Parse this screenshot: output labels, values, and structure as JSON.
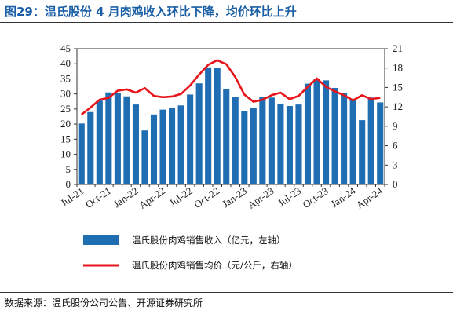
{
  "title": "图29：温氏股份 4 月肉鸡收入环比下降，均价环比上升",
  "source": "数据来源：温氏股份公司公告、开源证券研究所",
  "colors": {
    "title": "#1a5fa6",
    "bar": "#1f6db3",
    "line": "#e8141b"
  },
  "chart_data": {
    "type": "bar",
    "categories": [
      "Jul-21",
      "Aug-21",
      "Sep-21",
      "Oct-21",
      "Nov-21",
      "Dec-21",
      "Jan-22",
      "Feb-22",
      "Mar-22",
      "Apr-22",
      "May-22",
      "Jun-22",
      "Jul-22",
      "Aug-22",
      "Sep-22",
      "Oct-22",
      "Nov-22",
      "Dec-22",
      "Jan-23",
      "Feb-23",
      "Mar-23",
      "Apr-23",
      "May-23",
      "Jun-23",
      "Jul-23",
      "Aug-23",
      "Sep-23",
      "Oct-23",
      "Nov-23",
      "Dec-23",
      "Jan-24",
      "Feb-24",
      "Mar-24",
      "Apr-24"
    ],
    "x_tick_labels": [
      "Jul-21",
      "Oct-21",
      "Jan-22",
      "Apr-22",
      "Jul-22",
      "Oct-22",
      "Jan-23",
      "Apr-23",
      "Jul-23",
      "Oct-23",
      "Jan-24",
      "Apr-24"
    ],
    "series": [
      {
        "name": "温氏股份肉鸡销售收入（亿元，左轴）",
        "kind": "bar",
        "axis": "left",
        "values": [
          20.2,
          24.0,
          27.8,
          30.5,
          30.2,
          29.2,
          26.5,
          17.9,
          23.2,
          24.8,
          25.5,
          26.2,
          29.8,
          33.5,
          38.8,
          38.7,
          31.6,
          29.0,
          24.2,
          25.4,
          28.9,
          28.8,
          26.8,
          26.0,
          26.5,
          33.4,
          34.9,
          34.5,
          32.0,
          30.4,
          28.4,
          21.3,
          28.8,
          27.2
        ]
      },
      {
        "name": "温氏股份肉鸡销售均价（元/公斤，右轴）",
        "kind": "line",
        "axis": "right",
        "values": [
          10.8,
          11.9,
          13.1,
          13.4,
          14.5,
          14.7,
          14.2,
          14.9,
          13.7,
          13.5,
          13.6,
          14.0,
          15.3,
          17.0,
          18.5,
          19.2,
          18.6,
          16.6,
          13.9,
          12.8,
          13.1,
          13.8,
          14.2,
          13.2,
          13.7,
          15.1,
          16.4,
          15.1,
          14.4,
          13.8,
          13.0,
          13.8,
          13.2,
          13.4
        ]
      }
    ],
    "y_left": {
      "ylim": [
        0,
        45
      ],
      "ticks": [
        0,
        5,
        10,
        15,
        20,
        25,
        30,
        35,
        40,
        45
      ]
    },
    "y_right": {
      "ylim": [
        0,
        21
      ],
      "ticks": [
        0,
        3,
        6,
        9,
        12,
        15,
        18,
        21
      ]
    },
    "legend_position": "bottom"
  }
}
